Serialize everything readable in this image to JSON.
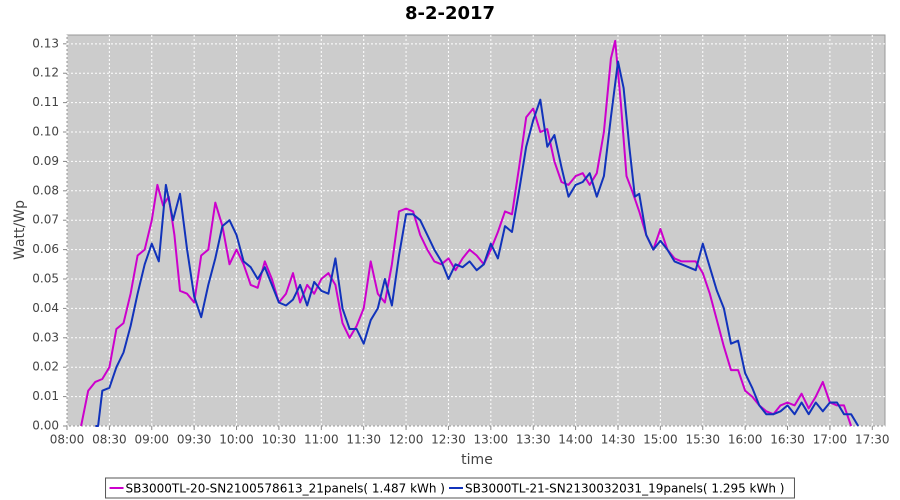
{
  "chart_data": {
    "type": "line",
    "title": "8-2-2017",
    "x_label": "time",
    "y_label": "Watt/Wp",
    "xlim": [
      "08:00",
      "17:39"
    ],
    "ylim": [
      0,
      0.133
    ],
    "xticks": [
      "08:00",
      "08:30",
      "09:00",
      "09:30",
      "10:00",
      "10:30",
      "11:00",
      "11:30",
      "12:00",
      "12:30",
      "13:00",
      "13:30",
      "14:00",
      "14:30",
      "15:00",
      "15:30",
      "16:00",
      "16:30",
      "17:00",
      "17:30"
    ],
    "yticks": [
      {
        "value": 0,
        "label": "0.00"
      },
      {
        "value": 0.01,
        "label": "0.01"
      },
      {
        "value": 0.02,
        "label": "0.02"
      },
      {
        "value": 0.03,
        "label": "0.03"
      },
      {
        "value": 0.04,
        "label": "0.04"
      },
      {
        "value": 0.05,
        "label": "0.05"
      },
      {
        "value": 0.06,
        "label": "0.06"
      },
      {
        "value": 0.07,
        "label": "0.07"
      },
      {
        "value": 0.08,
        "label": "0.08"
      },
      {
        "value": 0.09,
        "label": "0.09"
      },
      {
        "value": 0.1,
        "label": "0.10"
      },
      {
        "value": 0.11,
        "label": "0.11"
      },
      {
        "value": 0.12,
        "label": "0.12"
      },
      {
        "value": 0.13,
        "label": "0.13"
      }
    ],
    "grid": true,
    "legend": "bottom",
    "series": [
      {
        "name": "SB3000TL-20-SN2100578613_21panels( 1.487 kWh )",
        "color": "#cc00cc",
        "x": [
          "08:10",
          "08:15",
          "08:20",
          "08:25",
          "08:30",
          "08:35",
          "08:40",
          "08:45",
          "08:50",
          "08:55",
          "09:00",
          "09:04",
          "09:08",
          "09:12",
          "09:16",
          "09:20",
          "09:25",
          "09:30",
          "09:35",
          "09:40",
          "09:45",
          "09:50",
          "09:55",
          "10:00",
          "10:05",
          "10:10",
          "10:15",
          "10:20",
          "10:25",
          "10:30",
          "10:35",
          "10:40",
          "10:45",
          "10:50",
          "10:55",
          "11:00",
          "11:05",
          "11:10",
          "11:15",
          "11:20",
          "11:25",
          "11:30",
          "11:35",
          "11:40",
          "11:45",
          "11:50",
          "11:55",
          "12:00",
          "12:05",
          "12:10",
          "12:15",
          "12:20",
          "12:25",
          "12:30",
          "12:35",
          "12:40",
          "12:45",
          "12:50",
          "12:55",
          "13:00",
          "13:05",
          "13:10",
          "13:15",
          "13:20",
          "13:25",
          "13:30",
          "13:35",
          "13:40",
          "13:45",
          "13:50",
          "13:55",
          "14:00",
          "14:05",
          "14:10",
          "14:15",
          "14:20",
          "14:25",
          "14:28",
          "14:32",
          "14:36",
          "14:40",
          "14:45",
          "14:50",
          "14:55",
          "15:00",
          "15:05",
          "15:10",
          "15:15",
          "15:20",
          "15:25",
          "15:30",
          "15:35",
          "15:40",
          "15:45",
          "15:50",
          "15:55",
          "16:00",
          "16:05",
          "16:10",
          "16:15",
          "16:20",
          "16:25",
          "16:30",
          "16:35",
          "16:40",
          "16:45",
          "16:50",
          "16:55",
          "17:00",
          "17:05",
          "17:10",
          "17:15"
        ],
        "values": [
          0,
          0.012,
          0.015,
          0.016,
          0.02,
          0.033,
          0.035,
          0.045,
          0.058,
          0.06,
          0.07,
          0.082,
          0.075,
          0.078,
          0.065,
          0.046,
          0.045,
          0.042,
          0.058,
          0.06,
          0.076,
          0.068,
          0.055,
          0.06,
          0.055,
          0.048,
          0.047,
          0.056,
          0.05,
          0.042,
          0.045,
          0.052,
          0.042,
          0.048,
          0.045,
          0.05,
          0.052,
          0.048,
          0.035,
          0.03,
          0.034,
          0.04,
          0.056,
          0.045,
          0.042,
          0.055,
          0.073,
          0.074,
          0.073,
          0.065,
          0.06,
          0.056,
          0.055,
          0.057,
          0.053,
          0.057,
          0.06,
          0.058,
          0.055,
          0.06,
          0.066,
          0.073,
          0.072,
          0.088,
          0.105,
          0.108,
          0.1,
          0.101,
          0.09,
          0.083,
          0.082,
          0.085,
          0.086,
          0.082,
          0.086,
          0.1,
          0.125,
          0.131,
          0.11,
          0.085,
          0.08,
          0.073,
          0.065,
          0.06,
          0.067,
          0.06,
          0.057,
          0.056,
          0.056,
          0.056,
          0.052,
          0.045,
          0.036,
          0.027,
          0.019,
          0.019,
          0.012,
          0.01,
          0.007,
          0.005,
          0.004,
          0.007,
          0.008,
          0.007,
          0.011,
          0.006,
          0.01,
          0.015,
          0.008,
          0.007,
          0.007,
          0
        ]
      },
      {
        "name": "SB3000TL-21-SN2130032031_19panels( 1.295 kWh )",
        "color": "#1133bb",
        "x": [
          "08:20",
          "08:22",
          "08:25",
          "08:30",
          "08:35",
          "08:40",
          "08:45",
          "08:50",
          "08:55",
          "09:00",
          "09:05",
          "09:10",
          "09:15",
          "09:20",
          "09:25",
          "09:30",
          "09:35",
          "09:40",
          "09:45",
          "09:50",
          "09:55",
          "10:00",
          "10:05",
          "10:10",
          "10:15",
          "10:20",
          "10:25",
          "10:30",
          "10:35",
          "10:40",
          "10:45",
          "10:50",
          "10:55",
          "11:00",
          "11:05",
          "11:10",
          "11:15",
          "11:20",
          "11:25",
          "11:30",
          "11:35",
          "11:40",
          "11:45",
          "11:50",
          "11:55",
          "12:00",
          "12:05",
          "12:10",
          "12:15",
          "12:20",
          "12:25",
          "12:30",
          "12:35",
          "12:40",
          "12:45",
          "12:50",
          "12:55",
          "13:00",
          "13:05",
          "13:10",
          "13:15",
          "13:20",
          "13:25",
          "13:30",
          "13:35",
          "13:40",
          "13:45",
          "13:50",
          "13:55",
          "14:00",
          "14:05",
          "14:10",
          "14:15",
          "14:20",
          "14:25",
          "14:30",
          "14:34",
          "14:38",
          "14:42",
          "14:45",
          "14:50",
          "14:55",
          "15:00",
          "15:05",
          "15:10",
          "15:15",
          "15:20",
          "15:25",
          "15:30",
          "15:35",
          "15:40",
          "15:45",
          "15:50",
          "15:55",
          "16:00",
          "16:05",
          "16:10",
          "16:15",
          "16:20",
          "16:25",
          "16:30",
          "16:35",
          "16:40",
          "16:45",
          "16:50",
          "16:55",
          "17:00",
          "17:05",
          "17:10",
          "17:15",
          "17:20"
        ],
        "values": [
          0,
          0,
          0.012,
          0.013,
          0.02,
          0.025,
          0.034,
          0.045,
          0.055,
          0.062,
          0.056,
          0.082,
          0.07,
          0.079,
          0.06,
          0.044,
          0.037,
          0.048,
          0.057,
          0.068,
          0.07,
          0.065,
          0.056,
          0.054,
          0.05,
          0.054,
          0.048,
          0.042,
          0.041,
          0.043,
          0.048,
          0.041,
          0.049,
          0.046,
          0.045,
          0.057,
          0.04,
          0.033,
          0.033,
          0.028,
          0.036,
          0.04,
          0.05,
          0.041,
          0.058,
          0.072,
          0.072,
          0.07,
          0.065,
          0.06,
          0.056,
          0.05,
          0.055,
          0.054,
          0.056,
          0.053,
          0.055,
          0.062,
          0.057,
          0.068,
          0.066,
          0.08,
          0.095,
          0.104,
          0.111,
          0.095,
          0.099,
          0.088,
          0.078,
          0.082,
          0.083,
          0.086,
          0.078,
          0.085,
          0.105,
          0.124,
          0.115,
          0.095,
          0.078,
          0.079,
          0.065,
          0.06,
          0.063,
          0.06,
          0.056,
          0.055,
          0.054,
          0.053,
          0.062,
          0.054,
          0.046,
          0.04,
          0.028,
          0.029,
          0.018,
          0.013,
          0.007,
          0.004,
          0.004,
          0.005,
          0.007,
          0.004,
          0.008,
          0.004,
          0.008,
          0.005,
          0.008,
          0.008,
          0.004,
          0.004,
          0
        ]
      }
    ]
  }
}
